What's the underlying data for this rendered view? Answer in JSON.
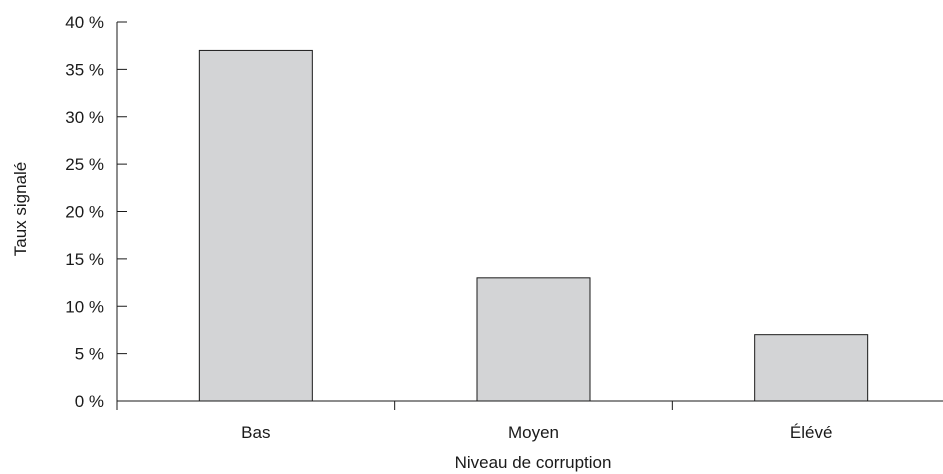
{
  "chart_data": {
    "type": "bar",
    "categories": [
      "Bas",
      "Moyen",
      "Élévé"
    ],
    "values": [
      37,
      13,
      7
    ],
    "value_unit": "%",
    "xlabel": "Niveau de corruption",
    "ylabel": "Taux signalé",
    "ylim": [
      0,
      40
    ],
    "yticks": [
      0,
      5,
      10,
      15,
      20,
      25,
      30,
      35,
      40
    ],
    "ytick_labels": [
      "0 %",
      "5 %",
      "10 %",
      "15 %",
      "20 %",
      "25 %",
      "30 %",
      "35 %",
      "40 %"
    ],
    "grid": false,
    "legend": "none",
    "colors": {
      "bar_fill": "#d3d4d6",
      "bar_stroke": "#1a1a1a",
      "axis": "#1a1a1a"
    }
  }
}
